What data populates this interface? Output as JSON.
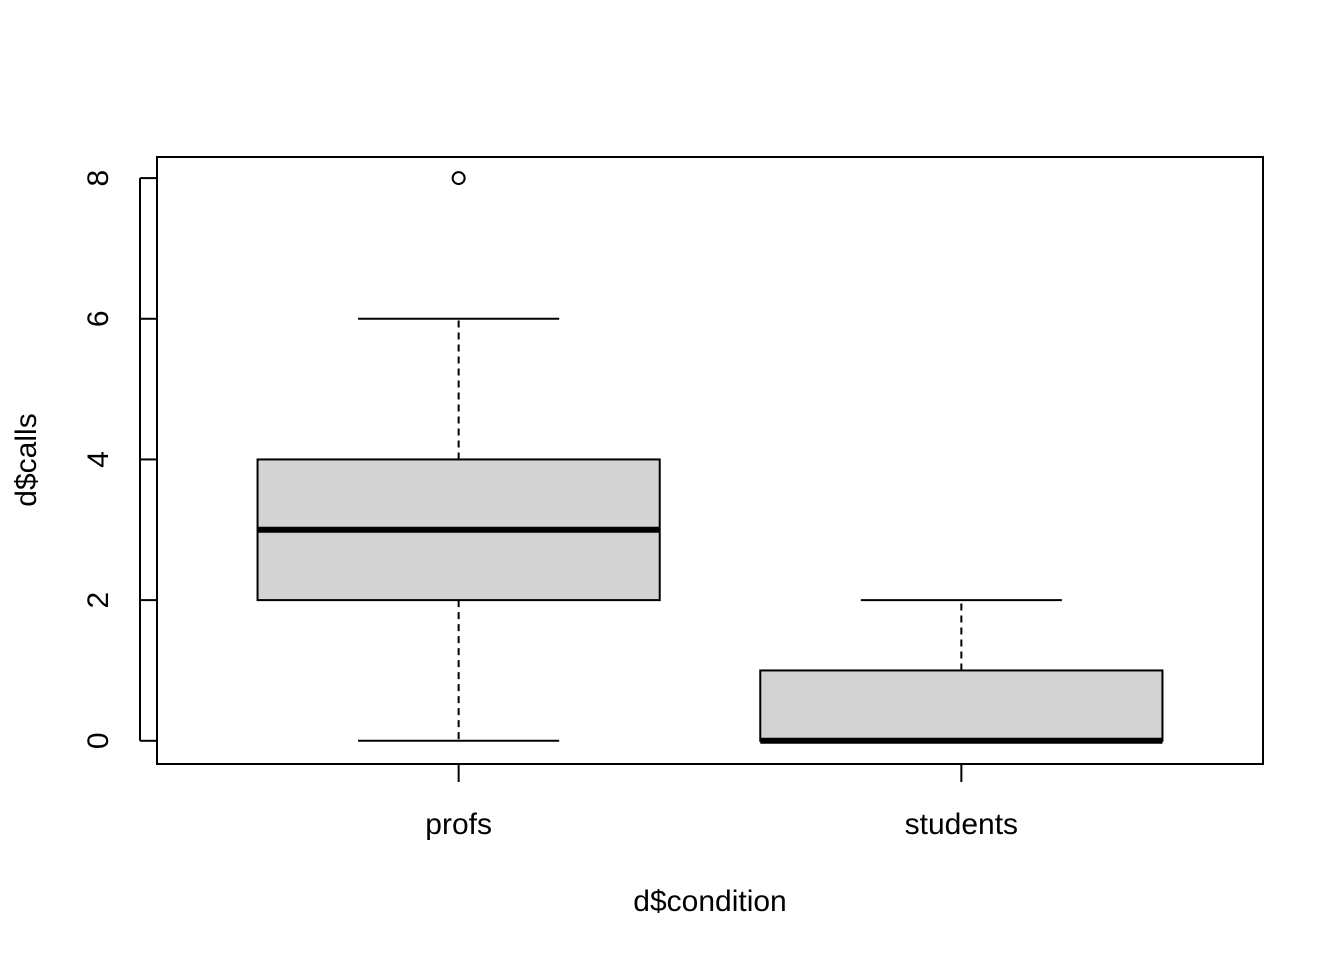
{
  "chart_data": {
    "type": "boxplot",
    "title": "",
    "xlabel": "d$condition",
    "ylabel": "d$calls",
    "ylim": [
      -0.33,
      8.3
    ],
    "y_ticks": [
      0,
      2,
      4,
      6,
      8
    ],
    "y_tick_labels": [
      "0",
      "2",
      "4",
      "6",
      "8"
    ],
    "categories": [
      "profs",
      "students"
    ],
    "grid": false,
    "legend": "none",
    "colors": {
      "box_fill": "#d3d3d3",
      "stroke": "#000000",
      "background": "#ffffff"
    },
    "boxes": [
      {
        "category": "profs",
        "whisker_low": 0,
        "q1": 2,
        "median": 3,
        "q3": 4,
        "whisker_high": 6,
        "outliers": [
          8
        ]
      },
      {
        "category": "students",
        "whisker_low": 0,
        "q1": 0,
        "median": 0,
        "q3": 1,
        "whisker_high": 2,
        "outliers": []
      }
    ]
  }
}
